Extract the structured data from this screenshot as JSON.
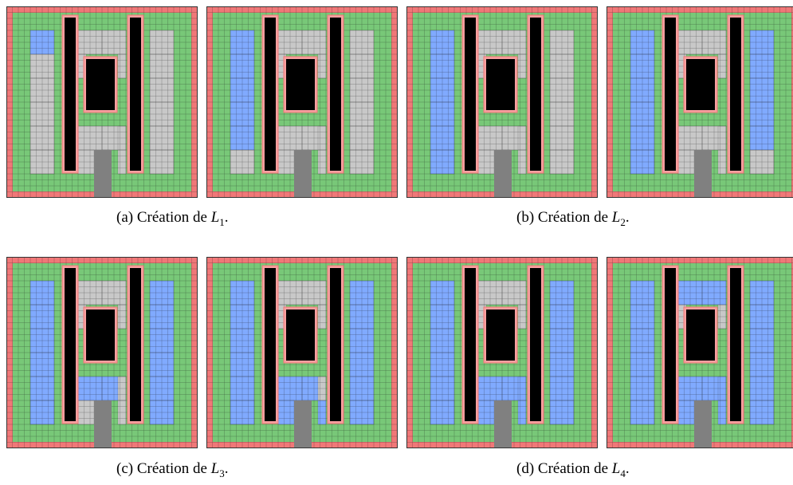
{
  "colors": {
    "wall": "#f07878",
    "wall_inner": "#f8a0a0",
    "free": "#78c878",
    "covered": "#c8c8c8",
    "selected": "#80aaff",
    "obstacle": "#000000",
    "door": "#808080",
    "grid_line": "#1a1a1a"
  },
  "captions": [
    {
      "id": "a",
      "prefix": "(a)  Création de ",
      "var": "L",
      "sub": "1",
      "suffix": "."
    },
    {
      "id": "b",
      "prefix": "(b)  Création de ",
      "var": "L",
      "sub": "2",
      "suffix": "."
    },
    {
      "id": "c",
      "prefix": "(c)  Création de ",
      "var": "L",
      "sub": "3",
      "suffix": "."
    },
    {
      "id": "d",
      "prefix": "(d)  Création de ",
      "var": "L",
      "sub": "4",
      "suffix": "."
    }
  ],
  "panels": [
    {
      "id": "a-left",
      "blue": [
        0
      ]
    },
    {
      "id": "a-right",
      "blue": [
        0,
        1,
        2,
        3,
        4,
        5
      ]
    },
    {
      "id": "b-left",
      "blue": [
        0,
        1,
        2,
        3,
        4,
        5,
        6
      ]
    },
    {
      "id": "b-right",
      "blue": [
        0,
        1,
        2,
        3,
        4,
        5,
        6,
        7,
        8,
        9,
        10,
        11,
        12
      ]
    },
    {
      "id": "c-left",
      "blue": [
        0,
        1,
        2,
        3,
        4,
        5,
        6,
        7,
        8,
        9,
        10,
        11,
        12,
        13,
        14,
        15
      ]
    },
    {
      "id": "c-right",
      "blue": [
        0,
        1,
        2,
        3,
        4,
        5,
        6,
        7,
        8,
        9,
        10,
        11,
        12,
        13,
        14,
        15,
        16,
        17,
        18
      ]
    },
    {
      "id": "d-left",
      "blue": [
        0,
        1,
        2,
        3,
        4,
        5,
        6,
        7,
        8,
        9,
        10,
        11,
        12,
        13,
        14,
        15,
        16,
        17,
        18,
        19
      ]
    },
    {
      "id": "d-right",
      "blue": [
        0,
        1,
        2,
        3,
        4,
        5,
        6,
        7,
        8,
        9,
        10,
        11,
        12,
        13,
        14,
        15,
        16,
        17,
        18,
        19,
        20,
        21
      ]
    }
  ]
}
